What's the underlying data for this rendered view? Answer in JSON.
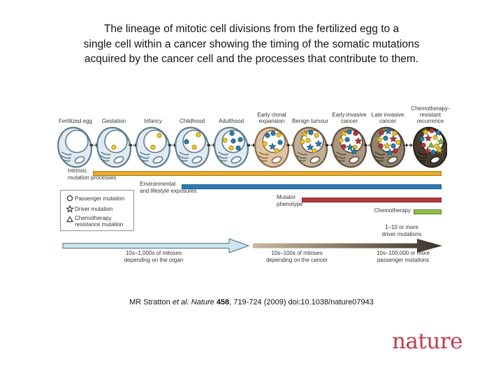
{
  "title": {
    "line1": "The lineage of mitotic cell divisions from the fertilized egg to a",
    "line2": "single cell within a cancer showing the timing of the somatic mutations",
    "line3": "acquired by the cancer cell and the processes that contribute to them."
  },
  "figure": {
    "stages": [
      {
        "label": "Fertilized egg",
        "body": "#dfeaf2",
        "outline": "#5f7d8c",
        "dots": []
      },
      {
        "label": "Gestation",
        "body": "#dfeaf2",
        "outline": "#5f7d8c",
        "dots": [
          [
            "c",
            "y",
            30,
            33
          ]
        ]
      },
      {
        "label": "Infancy",
        "body": "#dfeaf2",
        "outline": "#5f7d8c",
        "dots": [
          [
            "c",
            "y",
            39,
            16
          ],
          [
            "c",
            "y",
            30,
            33
          ]
        ]
      },
      {
        "label": "Childhood",
        "body": "#dfeaf2",
        "outline": "#5f7d8c",
        "dots": [
          [
            "c",
            "y",
            39,
            15
          ],
          [
            "c",
            "b",
            22,
            25
          ],
          [
            "c",
            "y",
            33,
            33
          ]
        ]
      },
      {
        "label": "Adulthood",
        "body": "#dfeaf2",
        "outline": "#5f7d8c",
        "dots": [
          [
            "c",
            "b",
            31,
            13
          ],
          [
            "c",
            "y",
            21,
            23
          ],
          [
            "c",
            "b",
            33,
            24
          ],
          [
            "c",
            "b",
            43,
            22
          ],
          [
            "c",
            "y",
            30,
            34
          ],
          [
            "c",
            "b",
            40,
            34
          ]
        ]
      },
      {
        "label": "Early clonal expansion",
        "body": "#e1c4a2",
        "outline": "#8c6b4c",
        "dots": [
          [
            "c",
            "b",
            24,
            16
          ],
          [
            "c",
            "b",
            32,
            13
          ],
          [
            "c",
            "y",
            40,
            15
          ],
          [
            "c",
            "y",
            20,
            28
          ],
          [
            "s",
            "b",
            31,
            32
          ],
          [
            "c",
            "b",
            42,
            26
          ],
          [
            "c",
            "y",
            37,
            38
          ]
        ]
      },
      {
        "label": "Benign tumour",
        "body": "#c2b098",
        "outline": "#6e5f4c",
        "dots": [
          [
            "s",
            "y",
            22,
            14
          ],
          [
            "c",
            "b",
            31,
            12
          ],
          [
            "c",
            "y",
            39,
            16
          ],
          [
            "c",
            "y",
            19,
            25
          ],
          [
            "c",
            "y",
            27,
            23
          ],
          [
            "s",
            "b",
            30,
            33
          ],
          [
            "s",
            "b",
            42,
            28
          ],
          [
            "c",
            "y",
            36,
            38
          ]
        ]
      },
      {
        "label": "Early invasive cancer",
        "body": "#ab9984",
        "outline": "#5e5141",
        "dots": [
          [
            "s",
            "y",
            22,
            13
          ],
          [
            "c",
            "b",
            30,
            11
          ],
          [
            "c",
            "r",
            39,
            13
          ],
          [
            "c",
            "y",
            18,
            23
          ],
          [
            "c",
            "b",
            27,
            22
          ],
          [
            "s",
            "r",
            43,
            24
          ],
          [
            "c",
            "r",
            22,
            32
          ],
          [
            "s",
            "b",
            31,
            33
          ],
          [
            "c",
            "y",
            38,
            33
          ],
          [
            "s",
            "b",
            37,
            39
          ]
        ]
      },
      {
        "label": "Late invasive cancer",
        "body": "#93836e",
        "outline": "#4d4235",
        "dots": [
          [
            "c",
            "r",
            21,
            12
          ],
          [
            "s",
            "b",
            31,
            10
          ],
          [
            "c",
            "y",
            40,
            13
          ],
          [
            "s",
            "y",
            18,
            22
          ],
          [
            "c",
            "b",
            27,
            20
          ],
          [
            "s",
            "r",
            38,
            21
          ],
          [
            "c",
            "r",
            20,
            31
          ],
          [
            "s",
            "y",
            29,
            31
          ],
          [
            "c",
            "b",
            38,
            31
          ],
          [
            "c",
            "y",
            45,
            26
          ],
          [
            "s",
            "b",
            33,
            40
          ],
          [
            "c",
            "r",
            41,
            38
          ]
        ]
      },
      {
        "label": "Chemotherapy-resistant recurrence",
        "body": "#483c2e",
        "outline": "#262018",
        "dots": [
          [
            "s",
            "y",
            23,
            11
          ],
          [
            "c",
            "r",
            32,
            9
          ],
          [
            "s",
            "b",
            41,
            12
          ],
          [
            "c",
            "b",
            18,
            21
          ],
          [
            "s",
            "r",
            27,
            20
          ],
          [
            "c",
            "y",
            37,
            19
          ],
          [
            "s",
            "g",
            45,
            25
          ],
          [
            "c",
            "r",
            20,
            30
          ],
          [
            "t",
            "g",
            31,
            30
          ],
          [
            "c",
            "y",
            39,
            31
          ],
          [
            "s",
            "r",
            26,
            38
          ],
          [
            "c",
            "b",
            34,
            40
          ],
          [
            "s",
            "y",
            43,
            37
          ]
        ]
      }
    ],
    "dot_colors": {
      "y": {
        "fill": "#eec62f",
        "stroke": "#a98812"
      },
      "b": {
        "fill": "#2e7eae",
        "stroke": "#1c5677"
      },
      "r": {
        "fill": "#b9373e",
        "stroke": "#801f26"
      },
      "g": {
        "fill": "#7cb84a",
        "stroke": "#4f8427"
      }
    },
    "bars": {
      "intrinsic": {
        "line1": "Intrinsic",
        "line2": "mutation processes",
        "color": "#e9ab2d"
      },
      "environment": {
        "line1": "Environmental",
        "line2": "and lifestyle exposures",
        "color": "#2b7cb3"
      },
      "mutator": {
        "line1": "Mutator",
        "line2": "phenotype",
        "color": "#b23a3c"
      },
      "chemo": {
        "label": "Chemotherapy",
        "color": "#94bc4a"
      }
    },
    "legend": {
      "items": [
        {
          "glyph": "circle-outline",
          "label": "Passenger mutation"
        },
        {
          "glyph": "star-outline",
          "label": "Driver mutation"
        },
        {
          "glyph": "triangle-outline",
          "label": "Chemotherapy resistance mutation"
        }
      ]
    },
    "arrows": {
      "organ_line1": "10s–1,000s of mitoses",
      "organ_line2": "depending on the organ",
      "cancer_line1": "10s–100s of mitoses",
      "cancer_line2": "depending on the cancer",
      "driver_line1": "1–10 or more",
      "driver_line2": "driver mutations",
      "passenger_line1": "10s–100,000 or more",
      "passenger_line2": "passenger mutations",
      "organ_color": "#cfe4f0",
      "cancer_color_start": "#cbb79e",
      "cancer_color_end": "#3a3128"
    }
  },
  "citation": {
    "prefix": "MR Stratton ",
    "italic": "et al. Nature ",
    "bold": "458",
    "suffix": ", 719-724 (2009) doi:10.1038/nature07943"
  },
  "logo": {
    "text": "nature",
    "color": "#c43b4c"
  }
}
